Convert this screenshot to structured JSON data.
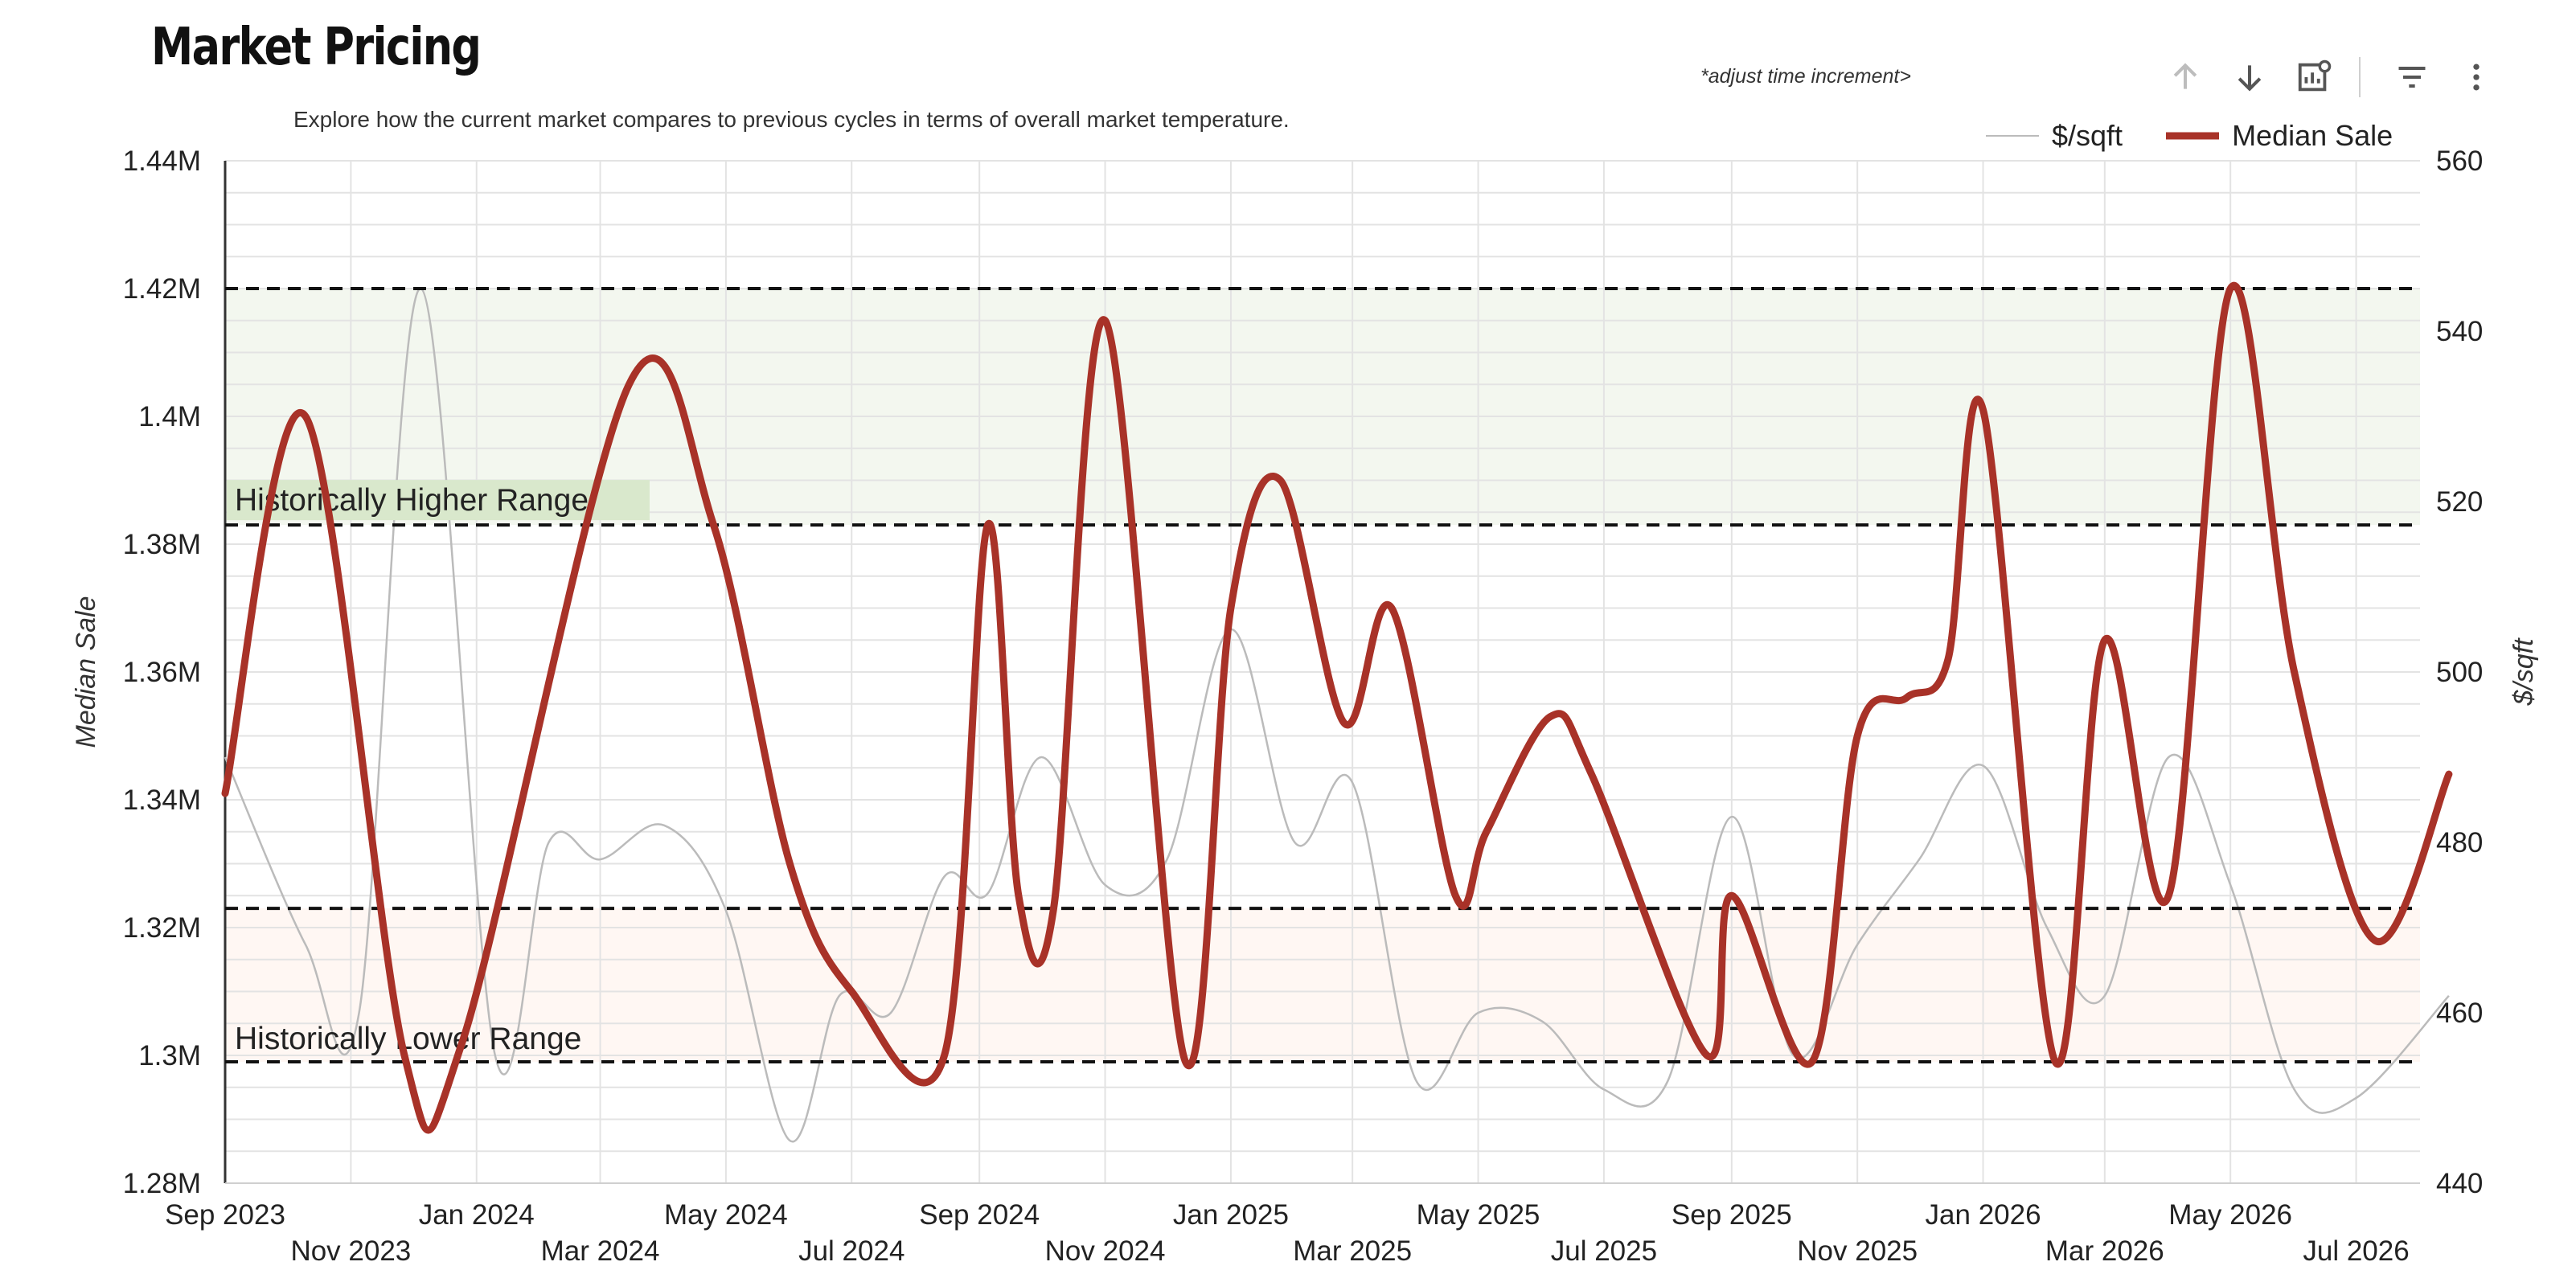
{
  "header": {
    "title": "Market Pricing",
    "subtitle": "Explore how the current market compares to previous cycles in terms of overall market temperature.",
    "adjust_hint": "*adjust time increment>"
  },
  "toolbar": {
    "icons": [
      "arrow-up-icon",
      "arrow-down-icon",
      "chart-settings-icon",
      "filter-icon",
      "more-vert-icon"
    ]
  },
  "colors": {
    "median_line": "#a83228",
    "psf_line": "#bbbbbb",
    "higher_band": "#f3f7ef",
    "higher_label_bg": "#d9e8cc",
    "lower_band": "#fff7f3",
    "grid": "#e3e3e3",
    "threshold": "#111111"
  },
  "chart_data": {
    "type": "line",
    "x_axis": {
      "top_row": [
        "Sep 2023",
        "Jan 2024",
        "May 2024",
        "Sep 2024",
        "Jan 2025",
        "May 2025",
        "Sep 2025",
        "Jan 2026",
        "May 2026"
      ],
      "bottom_row": [
        "Nov 2023",
        "Mar 2024",
        "Jul 2024",
        "Nov 2024",
        "Mar 2025",
        "Jul 2025",
        "Nov 2025",
        "Mar 2026",
        "Jul 2026"
      ],
      "range": [
        "2023-09",
        "2026-08"
      ]
    },
    "y_left": {
      "label": "Median Sale",
      "ylim": [
        1280000,
        1440000
      ],
      "ticks": [
        "1.28M",
        "1.3M",
        "1.32M",
        "1.34M",
        "1.36M",
        "1.38M",
        "1.4M",
        "1.42M",
        "1.44M"
      ]
    },
    "y_right": {
      "label": "$/sqft",
      "ylim": [
        440,
        560
      ],
      "ticks": [
        "440",
        "460",
        "480",
        "500",
        "520",
        "540",
        "560"
      ]
    },
    "bands": {
      "higher": {
        "label": "Historically Higher Range",
        "range": [
          1383000,
          1420000
        ]
      },
      "lower": {
        "label": "Historically Lower Range",
        "range": [
          1299000,
          1323000
        ]
      }
    },
    "threshold_lines": [
      1420000,
      1383000,
      1323000,
      1299000
    ],
    "legend": {
      "position": "top-right",
      "entries": [
        "$/sqft",
        "Median Sale"
      ]
    },
    "grid": true,
    "series": [
      {
        "name": "Median Sale",
        "axis": "left",
        "x": [
          "2023-09-01",
          "2023-10-10",
          "2023-11-27",
          "2023-12-25",
          "2024-03-15",
          "2024-04-25",
          "2024-06-01",
          "2024-07-01",
          "2024-08-15",
          "2024-09-05",
          "2024-09-20",
          "2024-10-07",
          "2024-11-01",
          "2024-12-10",
          "2025-01-01",
          "2025-01-25",
          "2025-02-25",
          "2025-03-20",
          "2025-04-20",
          "2025-05-05",
          "2025-06-05",
          "2025-06-25",
          "2025-08-20",
          "2025-09-01",
          "2025-10-10",
          "2025-11-01",
          "2025-11-25",
          "2025-12-15",
          "2026-01-01",
          "2026-02-05",
          "2026-03-01",
          "2026-04-01",
          "2026-05-01",
          "2026-06-01",
          "2026-07-10",
          "2026-08-15"
        ],
        "values": [
          1341000,
          1400000,
          1300000,
          1302000,
          1405000,
          1383000,
          1330000,
          1310000,
          1300000,
          1383000,
          1325000,
          1323000,
          1415000,
          1299000,
          1370000,
          1390000,
          1352000,
          1370000,
          1325000,
          1335000,
          1353000,
          1344000,
          1300000,
          1325000,
          1299000,
          1350000,
          1356000,
          1362000,
          1401000,
          1299000,
          1365000,
          1325000,
          1420000,
          1360000,
          1318000,
          1344000
        ]
      },
      {
        "name": "$/sqft",
        "axis": "right",
        "x": [
          "2023-09-01",
          "2023-10-10",
          "2023-11-05",
          "2023-12-05",
          "2024-01-10",
          "2024-02-05",
          "2024-03-01",
          "2024-04-01",
          "2024-05-01",
          "2024-06-01",
          "2024-06-25",
          "2024-07-20",
          "2024-08-15",
          "2024-09-05",
          "2024-10-01",
          "2024-11-01",
          "2024-12-01",
          "2025-01-01",
          "2025-02-01",
          "2025-03-01",
          "2025-04-01",
          "2025-05-01",
          "2025-06-01",
          "2025-07-01",
          "2025-08-01",
          "2025-09-01",
          "2025-10-01",
          "2025-11-01",
          "2025-12-01",
          "2026-01-01",
          "2026-02-01",
          "2026-03-01",
          "2026-04-01",
          "2026-05-01",
          "2026-06-01",
          "2026-07-01",
          "2026-08-15"
        ],
        "values": [
          490,
          468,
          460,
          545,
          455,
          480,
          478,
          482,
          472,
          445,
          462,
          460,
          476,
          474,
          490,
          475,
          478,
          505,
          480,
          487,
          452,
          460,
          459,
          451,
          452,
          483,
          455,
          468,
          478,
          489,
          470,
          462,
          490,
          475,
          451,
          450,
          462
        ]
      }
    ]
  }
}
